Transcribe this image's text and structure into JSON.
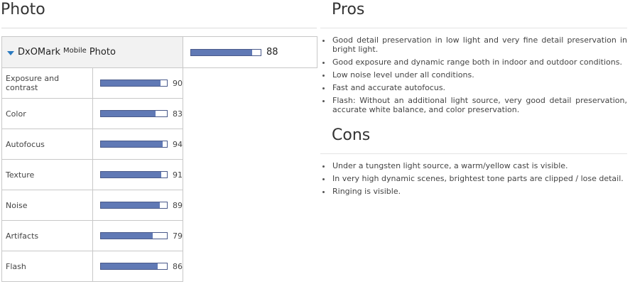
{
  "photo": {
    "title": "Photo",
    "main": {
      "label_prefix": "DxOMark",
      "label_sup": "Mobile",
      "label_suffix": "Photo",
      "score": 88
    },
    "subscores": [
      {
        "label": "Exposure and contrast",
        "score": 90
      },
      {
        "label": "Color",
        "score": 83
      },
      {
        "label": "Autofocus",
        "score": 94
      },
      {
        "label": "Texture",
        "score": 91
      },
      {
        "label": "Noise",
        "score": 89
      },
      {
        "label": "Artifacts",
        "score": 79
      },
      {
        "label": "Flash",
        "score": 86
      }
    ]
  },
  "pros": {
    "title": "Pros",
    "items": [
      "Good detail preservation in low light and very fine detail preservation in bright light.",
      "Good exposure and dynamic range both in indoor and outdoor conditions.",
      "Low noise level under all conditions.",
      "Fast and accurate autofocus.",
      "Flash: Without an additional light source, very good detail preservation, accurate white balance, and color preservation."
    ]
  },
  "cons": {
    "title": "Cons",
    "items": [
      "Under a tungsten light source, a warm/yellow cast is visible.",
      "In very  high  dynamic scenes, brightest tone parts are clipped / lose detail.",
      "Ringing is visible."
    ]
  },
  "colors": {
    "bar_fill": "#6079b5",
    "bar_border": "#4a5a8a",
    "caret": "#2a7ac0",
    "header_bg": "#f2f2f2"
  },
  "icons": {
    "expand": "caret-down-icon"
  }
}
